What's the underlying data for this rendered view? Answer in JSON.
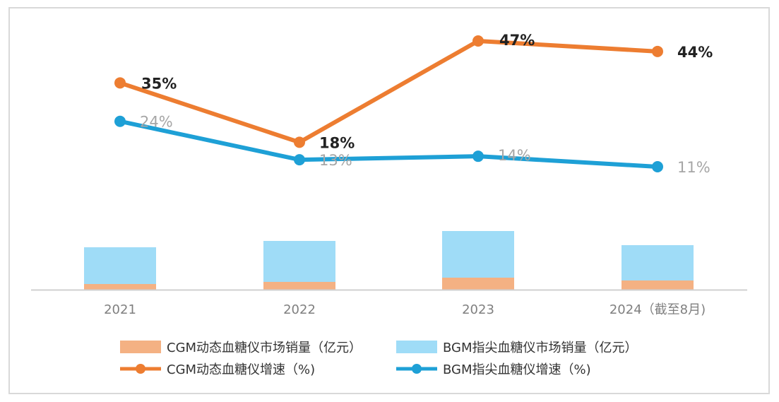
{
  "chart_data": {
    "type": "bar+line",
    "categories": [
      "2021",
      "2022",
      "2023",
      "2024（截至8月)"
    ],
    "bars": [
      {
        "name": "CGM动态血糖仪市场销量（亿元）",
        "color": "#f4b183",
        "values": [
          8,
          11,
          17,
          13
        ]
      },
      {
        "name": "BGM指尖血糖仪市场销量（亿元）",
        "color": "#9fdcf7",
        "values": [
          52,
          58,
          66,
          50
        ]
      }
    ],
    "lines": [
      {
        "name": "CGM动态血糖仪增速（%)",
        "color": "#ed7d31",
        "values": [
          35,
          18,
          47,
          44
        ],
        "labels": [
          "35%",
          "18%",
          "47%",
          "44%"
        ]
      },
      {
        "name": "BGM指尖血糖仪增速（%)",
        "color": "#1ea0d6",
        "values": [
          24,
          13,
          14,
          11
        ],
        "labels": [
          "24%",
          "13%",
          "14%",
          "11%"
        ]
      }
    ],
    "stacked": true,
    "grid": false,
    "legend_position": "bottom"
  }
}
